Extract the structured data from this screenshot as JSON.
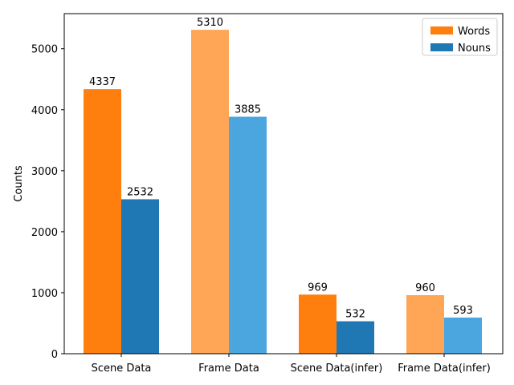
{
  "chart_data": {
    "type": "bar",
    "categories": [
      "Scene Data",
      "Frame Data",
      "Scene Data(infer)",
      "Frame Data(infer)"
    ],
    "series": [
      {
        "name": "Words",
        "values": [
          4337,
          5310,
          969,
          960
        ],
        "colors": [
          "#ff7f0e",
          "#ffa556",
          "#ff7f0e",
          "#ffa556"
        ],
        "legend_color": "#ff7f0e"
      },
      {
        "name": "Nouns",
        "values": [
          2532,
          3885,
          532,
          593
        ],
        "colors": [
          "#1f77b4",
          "#4ba6e0",
          "#1f77b4",
          "#4ba6e0"
        ],
        "legend_color": "#1f77b4"
      }
    ],
    "ylabel": "Counts",
    "xlabel": "",
    "title": "",
    "ylim": [
      0,
      5575
    ],
    "yticks": [
      0,
      1000,
      2000,
      3000,
      4000,
      5000
    ],
    "grid": false,
    "legend_position": "top-right"
  }
}
